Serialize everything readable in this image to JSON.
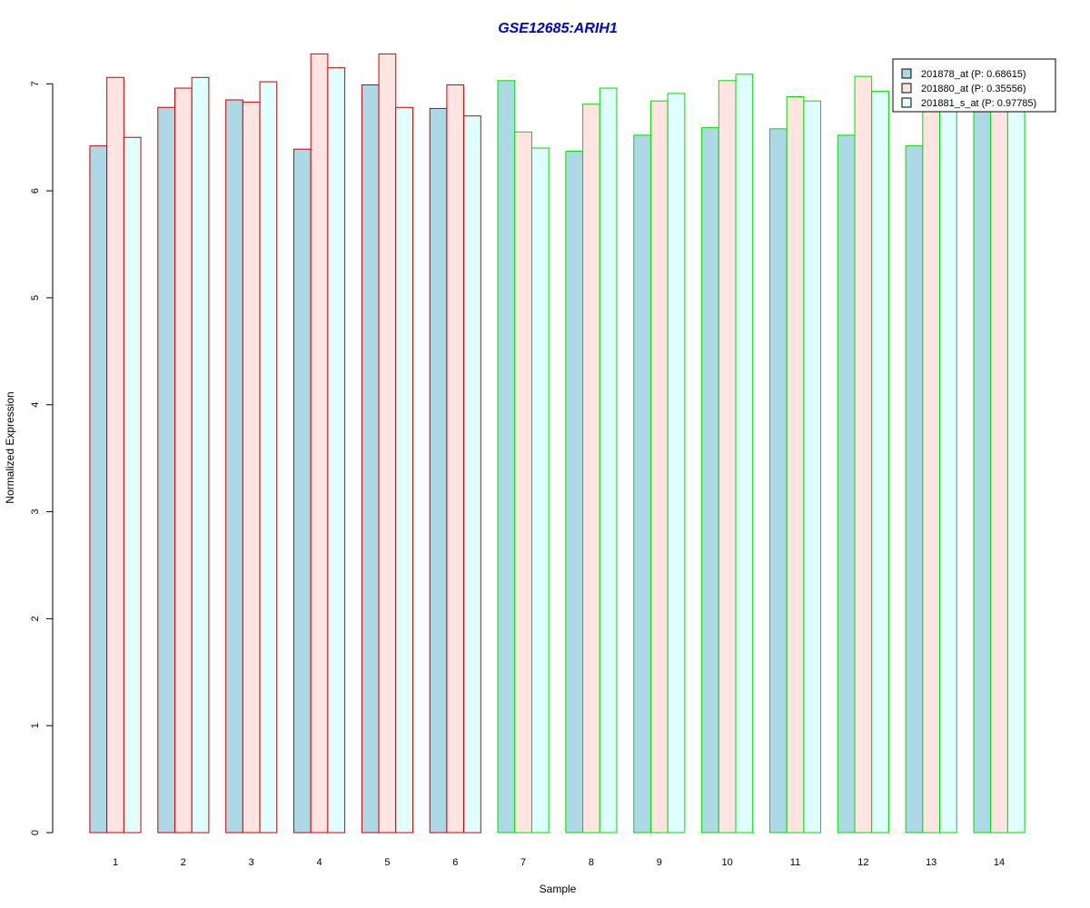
{
  "chart_data": {
    "type": "bar",
    "title": "GSE12685:ARIH1",
    "xlabel": "Sample",
    "ylabel": "Normalized Expression",
    "ylim": [
      0,
      7.3
    ],
    "yticks": [
      0,
      1,
      2,
      3,
      4,
      5,
      6,
      7
    ],
    "categories": [
      "1",
      "2",
      "3",
      "4",
      "5",
      "6",
      "7",
      "8",
      "9",
      "10",
      "11",
      "12",
      "13",
      "14"
    ],
    "group_border_colors": [
      "#cc0000",
      "#cc0000",
      "#cc0000",
      "#cc0000",
      "#cc0000",
      "#cc0000",
      "#00dd00",
      "#00dd00",
      "#00dd00",
      "#00dd00",
      "#00dd00",
      "#00dd00",
      "#00dd00",
      "#00dd00"
    ],
    "series": [
      {
        "name": "201878_at (P: 0.68615)",
        "fill": "#add8e6",
        "values": [
          6.42,
          6.78,
          6.85,
          6.39,
          6.99,
          6.77,
          7.03,
          6.37,
          6.52,
          6.59,
          6.58,
          6.52,
          6.42,
          6.75
        ]
      },
      {
        "name": "201880_at (P: 0.35556)",
        "fill": "#ffe4e1",
        "values": [
          7.06,
          6.96,
          6.83,
          7.28,
          7.28,
          6.99,
          6.55,
          6.81,
          6.84,
          7.03,
          6.88,
          7.07,
          6.75,
          6.75
        ]
      },
      {
        "name": "201881_s_at (P: 0.97785)",
        "fill": "#e0ffff",
        "values": [
          6.5,
          7.06,
          7.02,
          7.15,
          6.78,
          6.7,
          6.4,
          6.96,
          6.91,
          7.09,
          6.84,
          6.93,
          6.75,
          6.75
        ]
      }
    ],
    "legend_position": "top-right",
    "grid": false
  }
}
